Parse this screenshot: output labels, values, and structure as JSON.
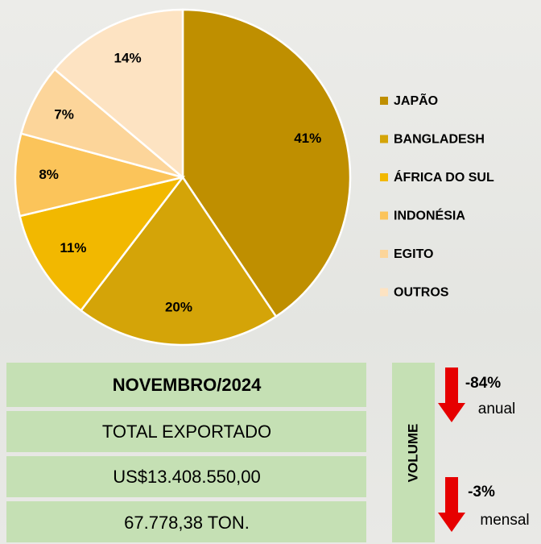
{
  "chart_data": {
    "type": "pie",
    "categories": [
      "JAPÃO",
      "BANGLADESH",
      "ÁFRICA DO SUL",
      "INDONÉSIA",
      "EGITO",
      "OUTROS"
    ],
    "values": [
      41,
      20,
      11,
      8,
      7,
      14
    ],
    "value_labels": [
      "41%",
      "20%",
      "11%",
      "8%",
      "7%",
      "14%"
    ],
    "colors": [
      "#bf8f00",
      "#d4a408",
      "#f2b800",
      "#fbc45a",
      "#fcd59a",
      "#fde3c2"
    ],
    "legend": "right"
  },
  "summary": {
    "period": "NOVEMBRO/2024",
    "rows": [
      "TOTAL EXPORTADO",
      "US$13.408.550,00",
      "67.778,38 TON."
    ]
  },
  "volume": {
    "label": "VOLUME",
    "changes": [
      {
        "value": "-84%",
        "period": "anual"
      },
      {
        "value": "-3%",
        "period": "mensal"
      }
    ]
  }
}
